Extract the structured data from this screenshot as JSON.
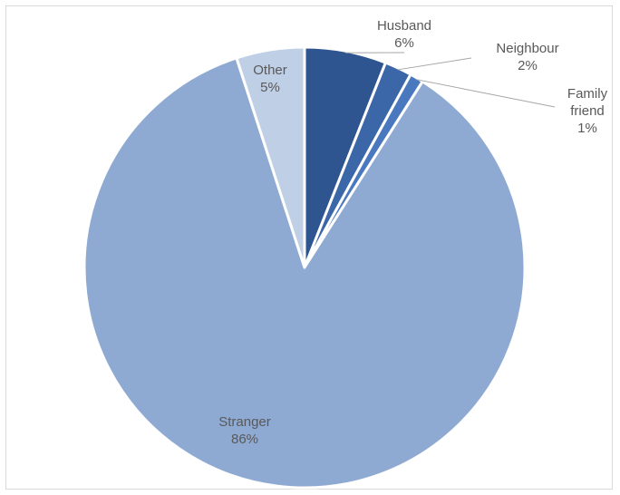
{
  "chart_data": {
    "type": "pie",
    "title": "",
    "start": "top, clockwise",
    "slices": [
      {
        "label": "Husband",
        "value": 6,
        "value_label": "6%",
        "color": "#2f5590"
      },
      {
        "label": "Neighbour",
        "value": 2,
        "value_label": "2%",
        "color": "#3b66a8"
      },
      {
        "label": "Family friend",
        "label_lines": [
          "Family",
          "friend"
        ],
        "value": 1,
        "value_label": "1%",
        "color": "#4a78bf"
      },
      {
        "label": "Stranger",
        "value": 86,
        "value_label": "86%",
        "color": "#8faad2"
      },
      {
        "label": "Other",
        "value": 5,
        "value_label": "5%",
        "color": "#bfcfe6"
      }
    ]
  }
}
